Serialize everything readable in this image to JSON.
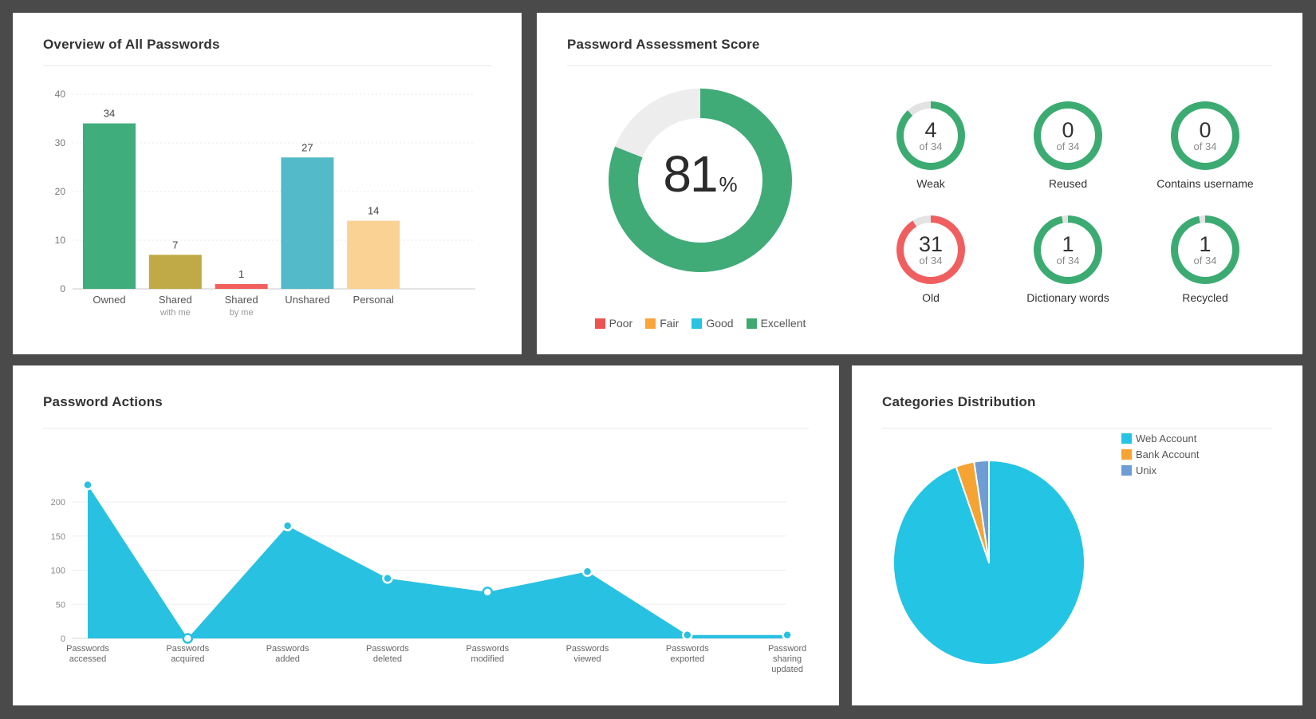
{
  "frame": {
    "background_color": "#4a4a4a",
    "card_color": "#ffffff"
  },
  "panels": {
    "overview": {
      "title": "Overview of All Passwords"
    },
    "assessment": {
      "title": "Password Assessment Score",
      "score": "81",
      "score_unit": "%",
      "legend": [
        {
          "label": "Poor",
          "color": "#ef5350"
        },
        {
          "label": "Fair",
          "color": "#faa43a"
        },
        {
          "label": "Good",
          "color": "#28c3e2"
        },
        {
          "label": "Excellent",
          "color": "#3fa96f"
        }
      ],
      "stats": [
        {
          "value": "4",
          "of": "of 34",
          "label": "Weak"
        },
        {
          "value": "0",
          "of": "of 34",
          "label": "Reused"
        },
        {
          "value": "0",
          "of": "of 34",
          "label": "Contains username"
        },
        {
          "value": "31",
          "of": "of 34",
          "label": "Old"
        },
        {
          "value": "1",
          "of": "of 34",
          "label": "Dictionary words"
        },
        {
          "value": "1",
          "of": "of 34",
          "label": "Recycled"
        }
      ]
    },
    "actions": {
      "title": "Password Actions"
    },
    "categories": {
      "title": "Categories Distribution",
      "legend": [
        {
          "label": "Web Account",
          "color": "#24c4e4"
        },
        {
          "label": "Bank Account",
          "color": "#f5a333"
        },
        {
          "label": "Unix",
          "color": "#6e9cd4"
        }
      ]
    }
  },
  "chart_data": [
    {
      "panel": "Overview of All Passwords",
      "type": "bar",
      "categories": [
        "Owned",
        "Shared with me",
        "Shared by me",
        "Unshared",
        "Personal"
      ],
      "category_lines": [
        [
          "Owned"
        ],
        [
          "Shared",
          "with me"
        ],
        [
          "Shared",
          "by me"
        ],
        [
          "Unshared"
        ],
        [
          "Personal"
        ]
      ],
      "values": [
        34,
        7,
        1,
        27,
        14
      ],
      "bar_colors": [
        "#3fae7c",
        "#bfaa47",
        "#f0605c",
        "#52bac8",
        "#f9d294"
      ],
      "yticks": [
        0,
        10,
        20,
        30,
        40
      ],
      "ylim": [
        0,
        40
      ],
      "grid": true,
      "value_labels": true
    },
    {
      "panel": "Password Assessment Score",
      "type": "donut",
      "value": 81,
      "unit": "%",
      "max": 100,
      "color": "#41ab78",
      "track_color": "#ededed",
      "legend": [
        "Poor",
        "Fair",
        "Good",
        "Excellent"
      ],
      "legend_colors": [
        "#ef5350",
        "#faa43a",
        "#28c3e2",
        "#3fa96f"
      ],
      "sub_donuts": [
        {
          "label": "Weak",
          "value": 4,
          "total": 34,
          "color": "#3cab72"
        },
        {
          "label": "Reused",
          "value": 0,
          "total": 34,
          "color": "#3cab72"
        },
        {
          "label": "Contains username",
          "value": 0,
          "total": 34,
          "color": "#3cab72"
        },
        {
          "label": "Old",
          "value": 31,
          "total": 34,
          "color": "#f05f5f"
        },
        {
          "label": "Dictionary words",
          "value": 1,
          "total": 34,
          "color": "#3cab72"
        },
        {
          "label": "Recycled",
          "value": 1,
          "total": 34,
          "color": "#3cab72"
        }
      ]
    },
    {
      "panel": "Password Actions",
      "type": "area",
      "categories": [
        "Passwords accessed",
        "Passwords acquired",
        "Passwords added",
        "Passwords deleted",
        "Passwords modified",
        "Passwords viewed",
        "Passwords exported",
        "Password sharing updated"
      ],
      "category_lines": [
        [
          "Passwords",
          "accessed"
        ],
        [
          "Passwords",
          "acquired"
        ],
        [
          "Passwords",
          "added"
        ],
        [
          "Passwords",
          "deleted"
        ],
        [
          "Passwords",
          "modified"
        ],
        [
          "Passwords",
          "viewed"
        ],
        [
          "Passwords",
          "exported"
        ],
        [
          "Password",
          "sharing",
          "updated"
        ]
      ],
      "values": [
        225,
        0,
        165,
        88,
        68,
        98,
        5,
        5
      ],
      "yticks": [
        0,
        50,
        100,
        150,
        200
      ],
      "ylim": [
        0,
        235
      ],
      "color": "#29c1e1",
      "marker_hollow": [
        false,
        true,
        false,
        false,
        true,
        false,
        false,
        false
      ],
      "grid": true
    },
    {
      "panel": "Categories Distribution",
      "type": "pie",
      "labels": [
        "Web Account",
        "Bank Account",
        "Unix"
      ],
      "values_percent": [
        94.4,
        3.1,
        2.5
      ],
      "colors": [
        "#24c4e4",
        "#f5a333",
        "#6e9cd4"
      ],
      "start_angle_deg": 0,
      "direction": "clockwise",
      "legend_position": "top-right"
    }
  ]
}
